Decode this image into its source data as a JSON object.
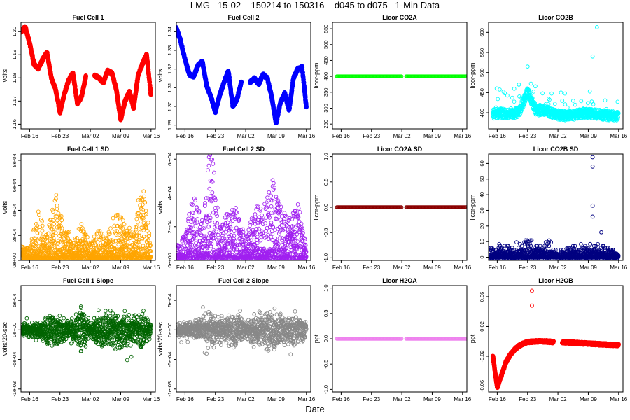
{
  "figure": {
    "title": "LMG   15-02    150214 to 150316    d045 to d075   1-Min Data",
    "xlabel": "Date"
  },
  "x_axis": {
    "ticks": [
      "Feb 16",
      "Feb 23",
      "Mar 02",
      "Mar 09",
      "Mar 16"
    ],
    "range": [
      "Feb 14",
      "Mar 17"
    ]
  },
  "chart_data": [
    {
      "type": "line",
      "title": "Fuel Cell 1",
      "ylabel": "volts",
      "color": "#ff0000",
      "yticks": [
        "1.16",
        "1.17",
        "1.18",
        "1.19",
        "1.20"
      ],
      "ylim": [
        1.158,
        1.204
      ],
      "x": [
        "Feb 14",
        "Feb 15",
        "Feb 16",
        "Feb 17",
        "Feb 18",
        "Feb 19",
        "Feb 20",
        "Feb 21",
        "Feb 22",
        "Feb 23",
        "Feb 24",
        "Feb 25",
        "Feb 26",
        "Feb 27",
        "Feb 28",
        "Mar 01",
        "Mar 02",
        "Mar 03",
        "Mar 04",
        "Mar 05",
        "Mar 06",
        "Mar 07",
        "Mar 08",
        "Mar 09",
        "Mar 10",
        "Mar 11",
        "Mar 12",
        "Mar 13",
        "Mar 14",
        "Mar 15",
        "Mar 16"
      ],
      "y": [
        1.2,
        1.202,
        1.195,
        1.186,
        1.184,
        1.188,
        1.191,
        1.18,
        1.175,
        1.165,
        1.173,
        1.179,
        1.182,
        1.169,
        1.172,
        1.181,
        null,
        1.181,
        1.18,
        1.178,
        1.183,
        1.182,
        1.175,
        1.162,
        1.17,
        1.174,
        1.167,
        1.181,
        1.186,
        1.19,
        1.172
      ]
    },
    {
      "type": "line",
      "title": "Fuel Cell 2",
      "ylabel": "volts",
      "color": "#0000ff",
      "yticks": [
        "1.29",
        "1.30",
        "1.31",
        "1.32",
        "1.33",
        "1.34"
      ],
      "ylim": [
        1.288,
        1.345
      ],
      "x": [
        "Feb 14",
        "Feb 15",
        "Feb 16",
        "Feb 17",
        "Feb 18",
        "Feb 19",
        "Feb 20",
        "Feb 21",
        "Feb 22",
        "Feb 23",
        "Feb 24",
        "Feb 25",
        "Feb 26",
        "Feb 27",
        "Feb 28",
        "Mar 01",
        "Mar 02",
        "Mar 03",
        "Mar 04",
        "Mar 05",
        "Mar 06",
        "Mar 07",
        "Mar 08",
        "Mar 09",
        "Mar 10",
        "Mar 11",
        "Mar 12",
        "Mar 13",
        "Mar 14",
        "Mar 15",
        "Mar 16"
      ],
      "y": [
        1.342,
        1.335,
        1.325,
        1.317,
        1.316,
        1.322,
        1.324,
        1.311,
        1.305,
        1.297,
        1.306,
        1.313,
        1.319,
        1.3,
        1.304,
        1.313,
        null,
        1.313,
        1.315,
        1.312,
        1.317,
        1.315,
        1.305,
        1.291,
        1.302,
        1.307,
        1.298,
        1.315,
        1.32,
        1.321,
        1.299
      ]
    },
    {
      "type": "scatter",
      "title": "Licor CO2A",
      "ylabel": "licor-ppm",
      "color": "#00ff00",
      "yticks": [
        "250",
        "300",
        "350",
        "400",
        "450",
        "500",
        "550"
      ],
      "ylim": [
        235,
        570
      ],
      "value": 400,
      "gap": [
        "Mar 02",
        "Mar 03"
      ]
    },
    {
      "type": "scatter",
      "title": "Licor CO2B",
      "ylabel": "licor-ppm",
      "color": "#00ffff",
      "yticks": [
        "400",
        "450",
        "500",
        "550",
        "600"
      ],
      "ylim": [
        360,
        625
      ],
      "x": [
        "Feb 15",
        "Feb 17",
        "Feb 19",
        "Feb 21",
        "Feb 22",
        "Feb 23",
        "Feb 25",
        "Feb 27",
        "Mar 01",
        "Mar 04",
        "Mar 06",
        "Mar 08",
        "Mar 10",
        "Mar 12",
        "Mar 14",
        "Mar 16"
      ],
      "y": [
        400,
        402,
        398,
        405,
        428,
        455,
        408,
        410,
        400,
        395,
        398,
        402,
        400,
        398,
        396,
        395
      ],
      "outliers": [
        {
          "x": "Feb 23",
          "y": 515
        },
        {
          "x": "Feb 21",
          "y": 470
        },
        {
          "x": "Mar 10",
          "y": 540
        },
        {
          "x": "Mar 11",
          "y": 613
        }
      ]
    },
    {
      "type": "scatter",
      "title": "Fuel Cell 1 SD",
      "ylabel": "volts",
      "color": "#ffa500",
      "yticks": [
        "0e+00",
        "2e-04",
        "4e-04",
        "6e-04",
        "8e-04"
      ],
      "ylim": [
        0,
        0.00085
      ],
      "x": [
        "Feb 14",
        "Feb 16",
        "Feb 18",
        "Feb 20",
        "Feb 22",
        "Feb 24",
        "Feb 26",
        "Feb 28",
        "Mar 02",
        "Mar 04",
        "Mar 06",
        "Mar 08",
        "Mar 10",
        "Mar 12",
        "Mar 14",
        "Mar 16"
      ],
      "y": [
        6e-05,
        5e-05,
        0.00025,
        0.00012,
        0.00035,
        0.00015,
        0.00012,
        0.00018,
        8e-05,
        0.00015,
        0.00012,
        0.00025,
        0.00018,
        0.00014,
        0.00045,
        6e-05
      ]
    },
    {
      "type": "scatter",
      "title": "Fuel Cell 2 SD",
      "ylabel": "volts",
      "color": "#a020f0",
      "yticks": [
        "0e+00",
        "2e-04",
        "4e-04",
        "6e-04"
      ],
      "ylim": [
        0,
        0.00063
      ],
      "x": [
        "Feb 14",
        "Feb 16",
        "Feb 18",
        "Feb 20",
        "Feb 22",
        "Feb 24",
        "Feb 26",
        "Feb 28",
        "Mar 02",
        "Mar 04",
        "Mar 06",
        "Mar 08",
        "Mar 10",
        "Mar 12",
        "Mar 14",
        "Mar 16"
      ],
      "y": [
        5e-05,
        0.0001,
        0.00025,
        0.00015,
        0.00045,
        0.00012,
        0.00018,
        0.0002,
        6e-05,
        0.0002,
        0.00018,
        0.0003,
        0.0002,
        0.00015,
        0.00022,
        4e-05
      ]
    },
    {
      "type": "scatter",
      "title": "Licor CO2A SD",
      "ylabel": "licor-ppm",
      "color": "#8b0000",
      "yticks": [
        "-1.0",
        "-0.5",
        "0.0",
        "0.5",
        "1.0"
      ],
      "ylim": [
        -1.05,
        1.05
      ],
      "value": 0,
      "gap": [
        "Mar 02",
        "Mar 03"
      ]
    },
    {
      "type": "scatter",
      "title": "Licor CO2B SD",
      "ylabel": "licor-ppm",
      "color": "#000080",
      "yticks": [
        "0",
        "10",
        "20",
        "30",
        "40",
        "50",
        "60"
      ],
      "ylim": [
        -2,
        66
      ],
      "x": [
        "Feb 14",
        "Feb 16",
        "Feb 18",
        "Feb 20",
        "Feb 22",
        "Feb 24",
        "Feb 26",
        "Feb 28",
        "Mar 02",
        "Mar 04",
        "Mar 06",
        "Mar 08",
        "Mar 10",
        "Mar 12",
        "Mar 14",
        "Mar 16"
      ],
      "y": [
        4,
        6,
        5,
        6,
        8,
        7,
        5,
        7,
        3,
        4,
        5,
        6,
        7,
        5,
        4,
        3
      ],
      "outliers": [
        {
          "x": "Mar 10",
          "y": 64
        },
        {
          "x": "Mar 10",
          "y": 58
        },
        {
          "x": "Mar 10",
          "y": 33
        },
        {
          "x": "Mar 10",
          "y": 26
        },
        {
          "x": "Mar 12",
          "y": 16
        }
      ]
    },
    {
      "type": "scatter",
      "title": "Fuel Cell 1 Slope",
      "ylabel": "volts/20-sec",
      "color": "#006400",
      "yticks": [
        "-1e-03",
        "-5e-04",
        "0e+00",
        "5e-04"
      ],
      "ylim": [
        -0.00105,
        0.00075
      ],
      "x": [
        "Feb 14",
        "Feb 16",
        "Feb 18",
        "Feb 20",
        "Feb 22",
        "Feb 24",
        "Feb 26",
        "Feb 28",
        "Mar 02",
        "Mar 04",
        "Mar 06",
        "Mar 08",
        "Mar 10",
        "Mar 12",
        "Mar 14",
        "Mar 16"
      ],
      "y": [
        0.0001,
        0.00012,
        0.0001,
        0.00022,
        0.00025,
        0.0002,
        0.00018,
        0.00035,
        0.0001,
        0.0003,
        0.00025,
        0.0003,
        0.00028,
        0.00022,
        0.0003,
        0.0001
      ]
    },
    {
      "type": "scatter",
      "title": "Fuel Cell 2 Slope",
      "ylabel": "volts/20-sec",
      "color": "#888888",
      "yticks": [
        "-1e-03",
        "-5e-04",
        "0e+00",
        "5e-04"
      ],
      "ylim": [
        -0.00105,
        0.00075
      ],
      "x": [
        "Feb 14",
        "Feb 16",
        "Feb 18",
        "Feb 20",
        "Feb 22",
        "Feb 24",
        "Feb 26",
        "Feb 28",
        "Mar 02",
        "Mar 04",
        "Mar 06",
        "Mar 08",
        "Mar 10",
        "Mar 12",
        "Mar 14",
        "Mar 16"
      ],
      "y": [
        0.0001,
        0.00012,
        0.00012,
        0.0002,
        0.00028,
        0.0002,
        0.00022,
        0.0003,
        0.0001,
        0.00025,
        0.00028,
        0.00032,
        0.00025,
        0.0002,
        0.00028,
        0.0001
      ]
    },
    {
      "type": "scatter",
      "title": "Licor H2OA",
      "ylabel": "ppt",
      "color": "#ee82ee",
      "yticks": [
        "-1.0",
        "-0.5",
        "0.0",
        "0.5",
        "1.0"
      ],
      "ylim": [
        -1.05,
        1.05
      ],
      "value": 0,
      "gap": [
        "Mar 02",
        "Mar 03"
      ]
    },
    {
      "type": "line",
      "title": "Licor H2OB",
      "ylabel": "ppt",
      "color": "#ff0000",
      "yticks": [
        "-0.06",
        "-0.02",
        "0.02",
        "0.06"
      ],
      "ylim": [
        -0.068,
        0.075
      ],
      "x": [
        "Feb 15",
        "Feb 16",
        "Feb 17",
        "Feb 18",
        "Feb 19",
        "Feb 20",
        "Feb 21",
        "Feb 22",
        "Feb 23",
        "Feb 25",
        "Feb 27",
        "Mar 01",
        "Mar 02",
        "Mar 03",
        "Mar 06",
        "Mar 09",
        "Mar 12",
        "Mar 16"
      ],
      "y": [
        -0.02,
        -0.062,
        -0.045,
        -0.028,
        -0.018,
        -0.011,
        -0.006,
        -0.003,
        -0.001,
        0.0,
        0.0,
        -0.001,
        null,
        -0.001,
        -0.002,
        -0.003,
        -0.004,
        -0.005
      ],
      "outliers": [
        {
          "x": "Feb 24",
          "y": 0.068
        },
        {
          "x": "Feb 24",
          "y": 0.048
        }
      ]
    }
  ]
}
